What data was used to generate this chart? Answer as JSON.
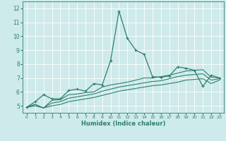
{
  "xlabel": "Humidex (Indice chaleur)",
  "ylabel": "",
  "xlim": [
    -0.5,
    23.5
  ],
  "ylim": [
    4.5,
    12.5
  ],
  "yticks": [
    5,
    6,
    7,
    8,
    9,
    10,
    11,
    12
  ],
  "xticks": [
    0,
    1,
    2,
    3,
    4,
    5,
    6,
    7,
    8,
    9,
    10,
    11,
    12,
    13,
    14,
    15,
    16,
    17,
    18,
    19,
    20,
    21,
    22,
    23
  ],
  "background_color": "#ceeaea",
  "grid_color": "#b0d8d8",
  "line_color": "#2d7f6e",
  "lines": [
    {
      "x": [
        0,
        1,
        2,
        3,
        4,
        5,
        6,
        7,
        8,
        9,
        10,
        11,
        12,
        13,
        14,
        15,
        16,
        17,
        18,
        19,
        20,
        21,
        22,
        23
      ],
      "y": [
        4.9,
        5.3,
        5.8,
        5.5,
        5.5,
        6.1,
        6.2,
        6.05,
        6.6,
        6.5,
        8.25,
        11.8,
        9.85,
        9.0,
        8.7,
        7.1,
        7.05,
        7.15,
        7.8,
        7.7,
        7.55,
        6.4,
        7.2,
        7.0
      ],
      "marker": true
    },
    {
      "x": [
        0,
        1,
        2,
        3,
        4,
        5,
        6,
        7,
        8,
        9,
        10,
        11,
        12,
        13,
        14,
        15,
        16,
        17,
        18,
        19,
        20,
        21,
        22,
        23
      ],
      "y": [
        4.9,
        5.1,
        4.85,
        5.4,
        5.45,
        5.8,
        5.85,
        5.95,
        6.0,
        6.35,
        6.5,
        6.6,
        6.7,
        6.85,
        7.0,
        7.0,
        7.1,
        7.2,
        7.35,
        7.5,
        7.55,
        7.6,
        7.05,
        7.0
      ],
      "marker": false
    },
    {
      "x": [
        0,
        1,
        2,
        3,
        4,
        5,
        6,
        7,
        8,
        9,
        10,
        11,
        12,
        13,
        14,
        15,
        16,
        17,
        18,
        19,
        20,
        21,
        22,
        23
      ],
      "y": [
        4.9,
        5.1,
        4.85,
        5.2,
        5.3,
        5.55,
        5.65,
        5.75,
        5.85,
        6.05,
        6.2,
        6.35,
        6.45,
        6.55,
        6.65,
        6.75,
        6.8,
        6.95,
        7.1,
        7.2,
        7.25,
        7.3,
        6.85,
        6.95
      ],
      "marker": false
    },
    {
      "x": [
        0,
        1,
        2,
        3,
        4,
        5,
        6,
        7,
        8,
        9,
        10,
        11,
        12,
        13,
        14,
        15,
        16,
        17,
        18,
        19,
        20,
        21,
        22,
        23
      ],
      "y": [
        4.9,
        5.0,
        4.85,
        5.0,
        5.1,
        5.3,
        5.4,
        5.5,
        5.6,
        5.75,
        5.9,
        6.05,
        6.15,
        6.25,
        6.35,
        6.45,
        6.5,
        6.6,
        6.7,
        6.85,
        6.9,
        6.95,
        6.6,
        6.85
      ],
      "marker": false
    }
  ]
}
